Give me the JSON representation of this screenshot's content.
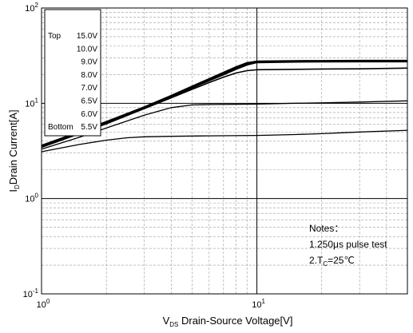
{
  "chart_data": {
    "type": "line",
    "title": "",
    "xlabel": {
      "main": "V",
      "sub": "DS",
      "rest": " Drain-Source Voltage[V]"
    },
    "ylabel": {
      "main": "I",
      "sub": "D",
      "rest": "Drain Current[A]"
    },
    "xscale": "log",
    "yscale": "log",
    "xlim": [
      1,
      50
    ],
    "ylim": [
      0.1,
      100
    ],
    "grid": true,
    "x_ticks": [
      {
        "value": 1,
        "base": "10",
        "exp": "0"
      },
      {
        "value": 10,
        "base": "10",
        "exp": "1"
      }
    ],
    "y_ticks": [
      {
        "value": 0.1,
        "base": "10",
        "exp": "-1"
      },
      {
        "value": 1,
        "base": "10",
        "exp": "0"
      },
      {
        "value": 10,
        "base": "10",
        "exp": "1"
      },
      {
        "value": 100,
        "base": "10",
        "exp": "2"
      }
    ],
    "legend": {
      "position": "top-left",
      "rows": [
        {
          "prefix": "Top",
          "value": "15.0V"
        },
        {
          "prefix": "",
          "value": "10.0V"
        },
        {
          "prefix": "",
          "value": "9.0V"
        },
        {
          "prefix": "",
          "value": "8.0V"
        },
        {
          "prefix": "",
          "value": "7.0V"
        },
        {
          "prefix": "",
          "value": "6.5V"
        },
        {
          "prefix": "",
          "value": "6.0V"
        },
        {
          "prefix": "Bottom",
          "value": "5.5V"
        }
      ]
    },
    "notes": {
      "title": "Notes：",
      "line1": "1.250μs pulse test",
      "line2_pre": "2.T",
      "line2_sub": "C",
      "line2_post": "=25℃"
    },
    "series": [
      {
        "label": "15.0V",
        "width": 2.2,
        "points": [
          [
            1,
            3.6
          ],
          [
            1.5,
            5.0
          ],
          [
            2,
            6.4
          ],
          [
            3,
            9.1
          ],
          [
            4,
            12.0
          ],
          [
            5,
            15.0
          ],
          [
            6,
            18.0
          ],
          [
            7,
            21.0
          ],
          [
            8,
            24.0
          ],
          [
            9,
            26.5
          ],
          [
            10,
            27.5
          ],
          [
            15,
            27.8
          ],
          [
            20,
            27.9
          ],
          [
            30,
            28.0
          ],
          [
            50,
            28.0
          ]
        ]
      },
      {
        "label": "10.0V",
        "width": 2.0,
        "points": [
          [
            1,
            3.55
          ],
          [
            1.5,
            4.95
          ],
          [
            2,
            6.3
          ],
          [
            3,
            9.0
          ],
          [
            4,
            11.8
          ],
          [
            5,
            14.8
          ],
          [
            6,
            17.7
          ],
          [
            7,
            20.6
          ],
          [
            8,
            23.5
          ],
          [
            9,
            26.0
          ],
          [
            10,
            27.2
          ],
          [
            15,
            27.5
          ],
          [
            20,
            27.6
          ],
          [
            30,
            27.7
          ],
          [
            50,
            27.7
          ]
        ]
      },
      {
        "label": "9.0V",
        "width": 2.0,
        "points": [
          [
            1,
            3.5
          ],
          [
            1.5,
            4.9
          ],
          [
            2,
            6.2
          ],
          [
            3,
            8.9
          ],
          [
            4,
            11.6
          ],
          [
            5,
            14.5
          ],
          [
            6,
            17.3
          ],
          [
            7,
            20.0
          ],
          [
            8,
            22.8
          ],
          [
            9,
            25.3
          ],
          [
            10,
            26.8
          ],
          [
            15,
            27.2
          ],
          [
            20,
            27.3
          ],
          [
            30,
            27.4
          ],
          [
            50,
            27.4
          ]
        ]
      },
      {
        "label": "8.0V",
        "width": 1.6,
        "points": [
          [
            1,
            3.45
          ],
          [
            1.5,
            4.8
          ],
          [
            2,
            6.1
          ],
          [
            3,
            8.8
          ],
          [
            4,
            11.4
          ],
          [
            5,
            14.0
          ],
          [
            6,
            16.5
          ],
          [
            7,
            18.8
          ],
          [
            8,
            20.8
          ],
          [
            9,
            22.0
          ],
          [
            10,
            22.5
          ],
          [
            15,
            22.7
          ],
          [
            20,
            22.9
          ],
          [
            30,
            23.0
          ],
          [
            50,
            23.4
          ]
        ]
      },
      {
        "label": "6.5V",
        "width": 1.3,
        "points": [
          [
            1,
            3.3
          ],
          [
            1.5,
            4.4
          ],
          [
            2,
            5.5
          ],
          [
            3,
            7.5
          ],
          [
            4,
            9.0
          ],
          [
            5,
            9.6
          ],
          [
            6,
            9.7
          ],
          [
            8,
            9.75
          ],
          [
            10,
            9.8
          ],
          [
            15,
            10.0
          ],
          [
            20,
            10.1
          ],
          [
            30,
            10.3
          ],
          [
            50,
            10.6
          ]
        ]
      },
      {
        "label": "5.5V",
        "width": 1.3,
        "points": [
          [
            1,
            3.1
          ],
          [
            1.5,
            3.7
          ],
          [
            2,
            4.1
          ],
          [
            2.5,
            4.35
          ],
          [
            3,
            4.45
          ],
          [
            4,
            4.5
          ],
          [
            6,
            4.55
          ],
          [
            10,
            4.6
          ],
          [
            15,
            4.7
          ],
          [
            20,
            4.8
          ],
          [
            30,
            5.0
          ],
          [
            50,
            5.2
          ]
        ]
      }
    ]
  }
}
